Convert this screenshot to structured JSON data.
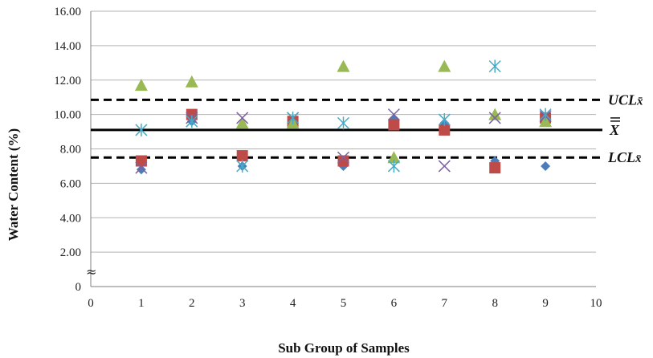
{
  "chart_data": {
    "type": "scatter",
    "xlabel": "Sub Group of Samples",
    "ylabel": "Water Content (%)",
    "xlim": [
      0,
      10
    ],
    "ylim": [
      0,
      16
    ],
    "x_ticks": [
      "0",
      "1",
      "2",
      "3",
      "4",
      "5",
      "6",
      "7",
      "8",
      "9",
      "10"
    ],
    "y_ticks": [
      "0",
      "2.00",
      "4.00",
      "6.00",
      "8.00",
      "10.00",
      "12.00",
      "14.00",
      "16.00"
    ],
    "axis_break_symbol": "≈",
    "grid": "horizontal",
    "reference_lines": [
      {
        "label": "UCL",
        "sub": "x̄",
        "value": 10.85,
        "style": "dashed"
      },
      {
        "label": "X",
        "overbar": "double",
        "value": 9.1,
        "style": "solid"
      },
      {
        "label": "LCL",
        "sub": "x̄",
        "value": 7.5,
        "style": "dashed"
      }
    ],
    "series": [
      {
        "marker": "diamond",
        "color": "#4a7ebb",
        "points": [
          [
            1,
            6.8
          ],
          [
            2,
            9.6
          ],
          [
            3,
            7.0
          ],
          [
            4,
            9.7
          ],
          [
            5,
            7.0
          ],
          [
            6,
            9.7
          ],
          [
            7,
            9.5
          ],
          [
            8,
            7.3
          ],
          [
            9,
            7.0
          ]
        ]
      },
      {
        "marker": "square",
        "color": "#be4b48",
        "points": [
          [
            1,
            7.3
          ],
          [
            2,
            10.0
          ],
          [
            3,
            7.6
          ],
          [
            4,
            9.6
          ],
          [
            5,
            7.3
          ],
          [
            6,
            9.4
          ],
          [
            7,
            9.1
          ],
          [
            8,
            6.9
          ],
          [
            9,
            9.8
          ]
        ]
      },
      {
        "marker": "triangle",
        "color": "#98b954",
        "points": [
          [
            1,
            11.7
          ],
          [
            2,
            11.9
          ],
          [
            3,
            9.5
          ],
          [
            4,
            9.5
          ],
          [
            5,
            12.8
          ],
          [
            6,
            7.5
          ],
          [
            7,
            12.8
          ],
          [
            8,
            10.0
          ],
          [
            9,
            9.6
          ]
        ]
      },
      {
        "marker": "x",
        "color": "#7d60a0",
        "points": [
          [
            1,
            6.9
          ],
          [
            2,
            9.8
          ],
          [
            3,
            9.8
          ],
          [
            4,
            9.8
          ],
          [
            5,
            7.5
          ],
          [
            6,
            10.0
          ],
          [
            7,
            7.0
          ],
          [
            8,
            9.8
          ],
          [
            9,
            9.9
          ]
        ]
      },
      {
        "marker": "asterisk",
        "color": "#46aac5",
        "points": [
          [
            1,
            9.1
          ],
          [
            2,
            9.6
          ],
          [
            3,
            7.0
          ],
          [
            4,
            9.8
          ],
          [
            5,
            9.5
          ],
          [
            6,
            7.0
          ],
          [
            7,
            9.7
          ],
          [
            8,
            12.8
          ],
          [
            9,
            10.0
          ]
        ]
      }
    ]
  }
}
